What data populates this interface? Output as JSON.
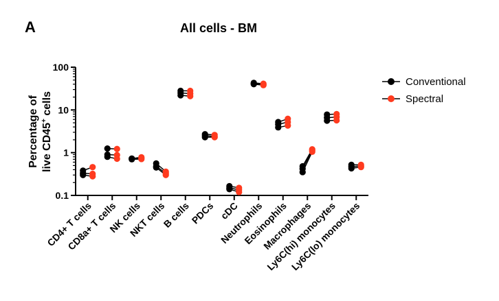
{
  "panel_label": "A",
  "chart_data": {
    "type": "scatter",
    "title": "All cells - BM",
    "xlabel": "",
    "ylabel_line1": "Percentage of",
    "ylabel_line2_pre": "live CD45",
    "ylabel_line2_sup": "+",
    "ylabel_line2_post": " cells",
    "y_scale": "log",
    "ylim": [
      0.1,
      100
    ],
    "yticks": [
      0.1,
      1,
      10,
      100
    ],
    "ytick_labels": [
      "0.1",
      "1",
      "10",
      "100"
    ],
    "grid": false,
    "legend_position": "right",
    "categories": [
      "CD4+ T cells",
      "CD8a+ T cells",
      "NK cells",
      "NKT cells",
      "B cells",
      "PDCs",
      "cDC",
      "Neutrophils",
      "Eosinophils",
      "Macrophages",
      "Ly6C(hi) monocytes",
      "Ly6C(lo) monocytes"
    ],
    "series": [
      {
        "name": "Conventional",
        "color": "#000000",
        "replicates": [
          [
            0.38,
            0.33,
            0.3
          ],
          [
            1.25,
            0.9,
            0.8
          ],
          [
            0.73,
            0.72,
            0.7
          ],
          [
            0.56,
            0.48,
            0.45
          ],
          [
            28,
            25,
            22
          ],
          [
            2.7,
            2.5,
            2.3
          ],
          [
            0.165,
            0.15,
            0.14
          ],
          [
            43,
            41,
            40
          ],
          [
            5.2,
            4.6,
            3.9
          ],
          [
            0.48,
            0.42,
            0.35
          ],
          [
            7.8,
            6.6,
            5.6
          ],
          [
            0.52,
            0.47,
            0.43
          ]
        ]
      },
      {
        "name": "Spectral",
        "color": "#ff3b1f",
        "replicates": [
          [
            0.46,
            0.32,
            0.28
          ],
          [
            1.22,
            0.88,
            0.72
          ],
          [
            0.78,
            0.74,
            0.71
          ],
          [
            0.36,
            0.33,
            0.3
          ],
          [
            28,
            24,
            21
          ],
          [
            2.6,
            2.4,
            2.3
          ],
          [
            0.15,
            0.135,
            0.12
          ],
          [
            41,
            39,
            38
          ],
          [
            6.2,
            5.2,
            4.3
          ],
          [
            1.2,
            1.12,
            1.05
          ],
          [
            8.0,
            6.8,
            5.7
          ],
          [
            0.52,
            0.49,
            0.46
          ]
        ]
      }
    ]
  }
}
